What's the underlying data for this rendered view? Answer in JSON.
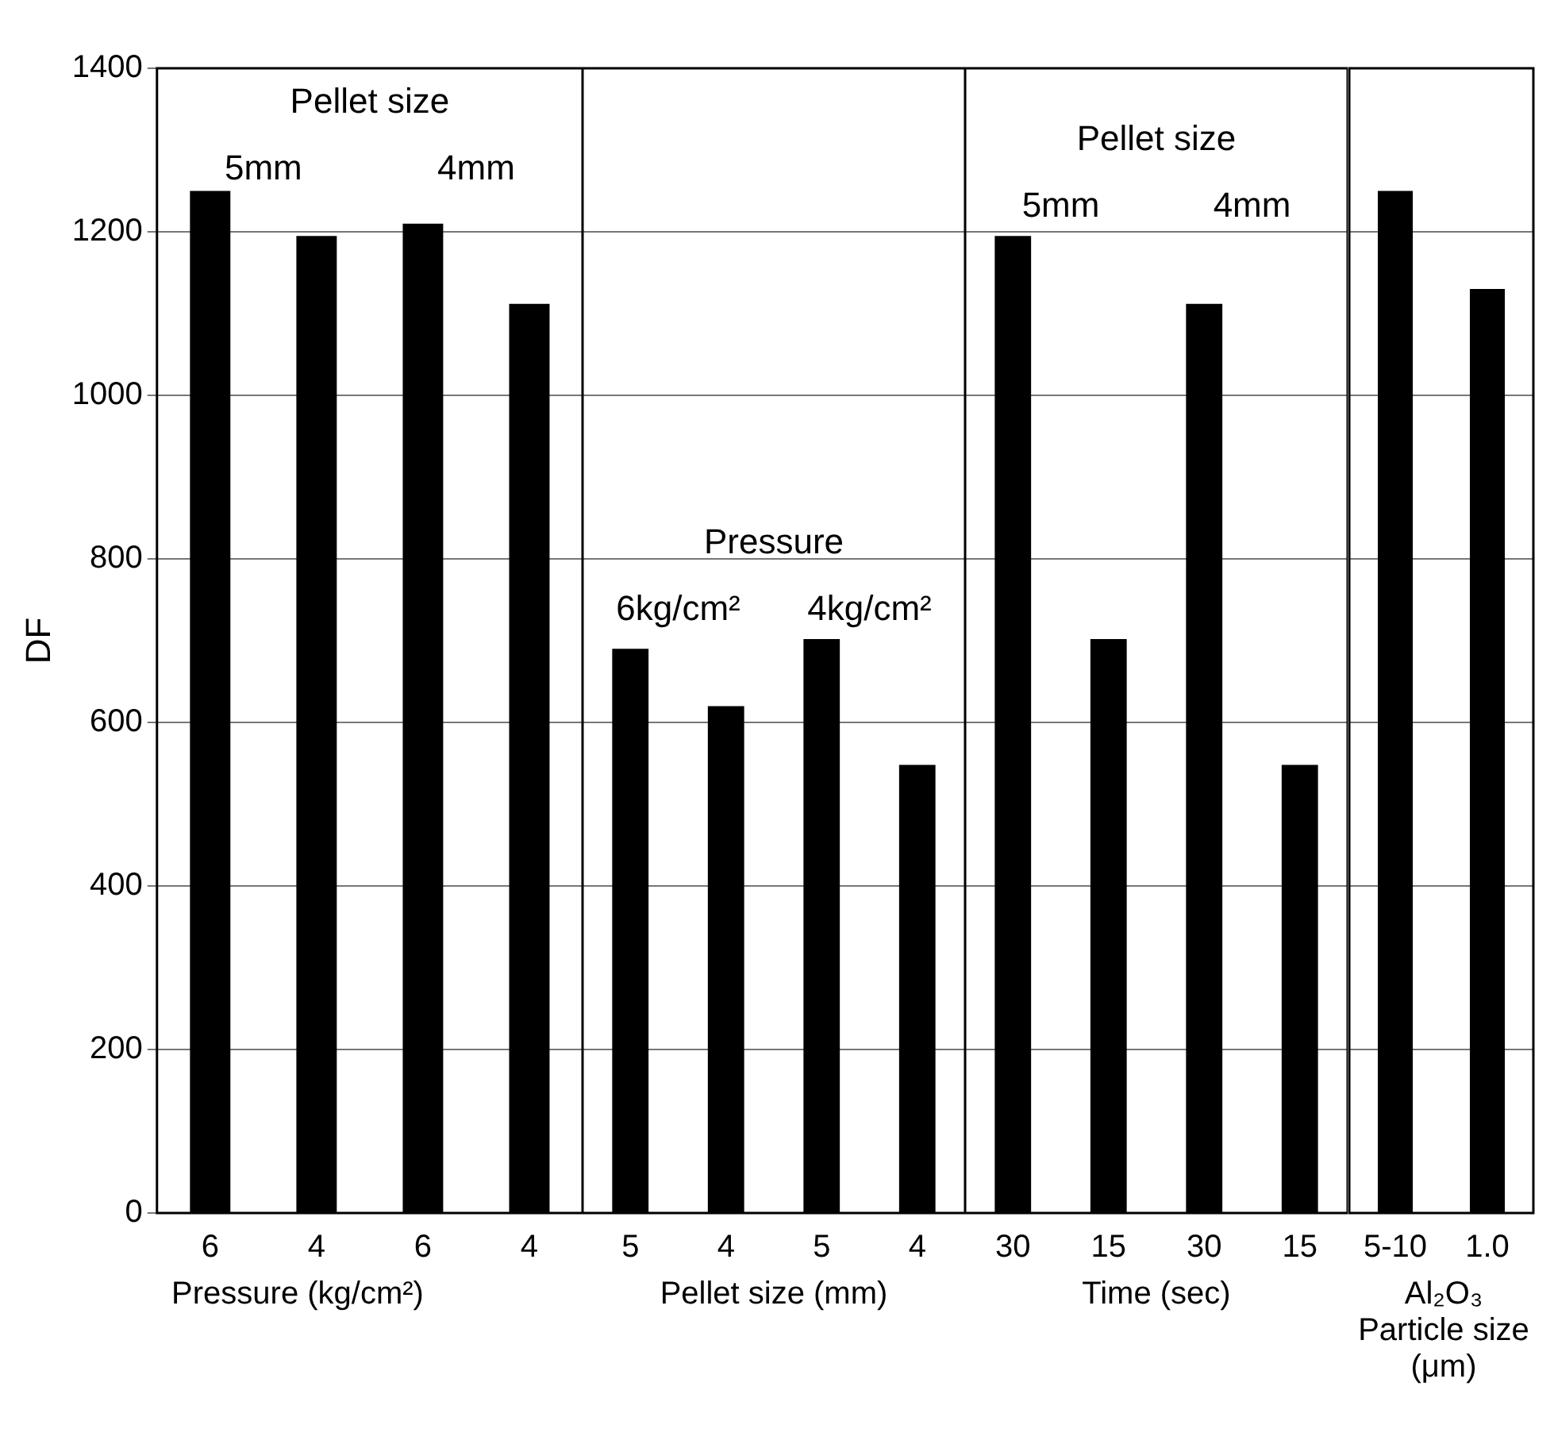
{
  "chart_data": [
    {
      "type": "bar",
      "categories": [
        "6",
        "4",
        "6",
        "4"
      ],
      "values": [
        1250,
        1195,
        1210,
        1112
      ],
      "color": "#000000",
      "xlabel": "Pressure (kg/cm²)",
      "ylabel": "DF",
      "ylim": [
        0,
        1400
      ],
      "yticks": [
        0,
        200,
        400,
        600,
        800,
        1000,
        1200,
        1400
      ],
      "grid": "y",
      "annotations": [
        "Pellet size",
        "5mm",
        "4mm"
      ]
    },
    {
      "type": "bar",
      "categories": [
        "5",
        "4",
        "5",
        "4"
      ],
      "values": [
        690,
        620,
        702,
        548
      ],
      "color": "#000000",
      "xlabel": "Pellet size (mm)",
      "ylim": [
        0,
        1400
      ],
      "yticks": [
        0,
        200,
        400,
        600,
        800,
        1000,
        1200,
        1400
      ],
      "grid": "y",
      "tick_labels": "x",
      "annotations": [
        "Pressure",
        "6kg/cm²",
        "4kg/cm²"
      ]
    },
    {
      "type": "bar",
      "categories": [
        "30",
        "15",
        "30",
        "15"
      ],
      "values": [
        1195,
        702,
        1112,
        548
      ],
      "color": "#000000",
      "xlabel": "Time (sec)",
      "ylim": [
        0,
        1400
      ],
      "yticks": [
        0,
        200,
        400,
        600,
        800,
        1000,
        1200,
        1400
      ],
      "grid": "y",
      "tick_labels": "x",
      "annotations": [
        "Pellet size",
        "5mm",
        "4mm"
      ]
    },
    {
      "type": "bar",
      "categories": [
        "5-10",
        "1.0"
      ],
      "values": [
        1250,
        1130
      ],
      "color": "#000000",
      "xlabel": "Al₂O₃ Particle size (μm)",
      "ylim": [
        0,
        1400
      ],
      "yticks": [
        0,
        200,
        400,
        600,
        800,
        1000,
        1200,
        1400
      ],
      "grid": "y",
      "tick_labels": "x"
    }
  ]
}
